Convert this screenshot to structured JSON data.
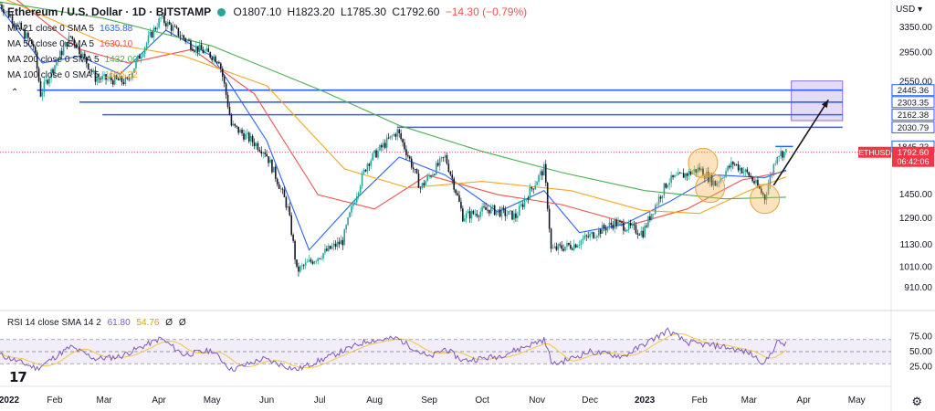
{
  "header": {
    "symbol": "Ethereum / U.S. Dollar · 1D · BITSTAMP",
    "open": "O1807.10",
    "high": "H1823.20",
    "low": "L1785.30",
    "close": "C1792.60",
    "change": "−14.30 (−0.79%)"
  },
  "currency": "USD",
  "moving_averages": [
    {
      "label": "MA 21 close 0 SMA 5",
      "value": "1635.88",
      "color": "#2962ff"
    },
    {
      "label": "MA 50 close 0 SMA 5",
      "value": "1630.10",
      "color": "#ef5350"
    },
    {
      "label": "MA 200 close 0 SMA 5",
      "value": "1432.00",
      "color": "#4caf50"
    },
    {
      "label": "MA 100 close 0 SMA 5",
      "value": "1585.32",
      "color": "#f5a623"
    }
  ],
  "rsi_legend": {
    "label": "RSI 14 close SMA 14 2",
    "rsi": "61.80",
    "sma": "54.76",
    "a": "Ø",
    "b": "Ø"
  },
  "colors": {
    "up": "#26a69a",
    "down": "#131722",
    "level": "#2962ff",
    "price_tag": "#f23645",
    "rsi": "#7e57c2",
    "rsi_ma": "#f5c542",
    "box": "#c9b8f0"
  },
  "chart_data": {
    "type": "candlestick",
    "y_scale": "log",
    "price_ticks": [
      "3350.00",
      "2950.00",
      "2550.00",
      "2160.00",
      "1450.00",
      "1290.00",
      "1130.00",
      "1010.00",
      "910.00"
    ],
    "rsi_ticks": [
      "75.00",
      "50.00",
      "25.00"
    ],
    "x_ticks": [
      "2022",
      "Feb",
      "Mar",
      "Apr",
      "May",
      "Jun",
      "Jul",
      "Aug",
      "Sep",
      "Oct",
      "Nov",
      "Dec",
      "2023",
      "Feb",
      "Mar",
      "Apr",
      "May"
    ],
    "levels": [
      {
        "label": "2445.36",
        "value": 2445.36
      },
      {
        "label": "2303.35",
        "value": 2303.35
      },
      {
        "label": "2162.38",
        "value": 2162.38
      },
      {
        "label": "2030.79",
        "value": 2030.79
      },
      {
        "label": "1845.23",
        "value": 1845.23
      }
    ],
    "current_price": {
      "symbol": "ETHUSD",
      "price": "1792.60",
      "countdown": "06:42:06",
      "value": 1792.6
    },
    "price_anchors": [
      [
        "2022-01-01",
        3750
      ],
      [
        "2022-01-20",
        3050
      ],
      [
        "2022-01-24",
        2400
      ],
      [
        "2022-02-10",
        3200
      ],
      [
        "2022-02-24",
        2600
      ],
      [
        "2022-03-14",
        2550
      ],
      [
        "2022-04-02",
        3500
      ],
      [
        "2022-04-20",
        3050
      ],
      [
        "2022-05-05",
        2850
      ],
      [
        "2022-05-12",
        2050
      ],
      [
        "2022-05-31",
        1800
      ],
      [
        "2022-06-13",
        1350
      ],
      [
        "2022-06-18",
        990
      ],
      [
        "2022-07-01",
        1070
      ],
      [
        "2022-07-14",
        1150
      ],
      [
        "2022-07-28",
        1700
      ],
      [
        "2022-08-14",
        1990
      ],
      [
        "2022-08-27",
        1500
      ],
      [
        "2022-09-10",
        1750
      ],
      [
        "2022-09-20",
        1300
      ],
      [
        "2022-10-05",
        1350
      ],
      [
        "2022-10-20",
        1300
      ],
      [
        "2022-11-05",
        1650
      ],
      [
        "2022-11-09",
        1100
      ],
      [
        "2022-11-22",
        1130
      ],
      [
        "2022-12-15",
        1260
      ],
      [
        "2022-12-31",
        1200
      ],
      [
        "2023-01-14",
        1550
      ],
      [
        "2023-02-01",
        1650
      ],
      [
        "2023-02-10",
        1530
      ],
      [
        "2023-02-20",
        1700
      ],
      [
        "2023-03-01",
        1600
      ],
      [
        "2023-03-10",
        1430
      ],
      [
        "2023-03-17",
        1780
      ],
      [
        "2023-03-22",
        1792.6
      ]
    ],
    "ma_series": [
      {
        "name": "MA 21",
        "points": [
          [
            "2022-01-01",
            3700
          ],
          [
            "2022-01-25",
            2800
          ],
          [
            "2022-02-15",
            2900
          ],
          [
            "2022-03-10",
            2650
          ],
          [
            "2022-04-05",
            3300
          ],
          [
            "2022-05-01",
            2900
          ],
          [
            "2022-06-01",
            1900
          ],
          [
            "2022-06-25",
            1100
          ],
          [
            "2022-07-20",
            1400
          ],
          [
            "2022-08-15",
            1750
          ],
          [
            "2022-09-10",
            1600
          ],
          [
            "2022-10-10",
            1330
          ],
          [
            "2022-11-05",
            1480
          ],
          [
            "2022-11-25",
            1200
          ],
          [
            "2022-12-20",
            1250
          ],
          [
            "2023-01-15",
            1400
          ],
          [
            "2023-02-10",
            1600
          ],
          [
            "2023-03-10",
            1580
          ],
          [
            "2023-03-22",
            1640
          ]
        ]
      },
      {
        "name": "MA 50",
        "points": [
          [
            "2022-01-01",
            4100
          ],
          [
            "2022-02-15",
            3000
          ],
          [
            "2022-03-15",
            2800
          ],
          [
            "2022-04-20",
            3000
          ],
          [
            "2022-05-25",
            2400
          ],
          [
            "2022-06-30",
            1450
          ],
          [
            "2022-08-01",
            1350
          ],
          [
            "2022-08-31",
            1600
          ],
          [
            "2022-10-10",
            1450
          ],
          [
            "2022-11-15",
            1380
          ],
          [
            "2022-12-25",
            1250
          ],
          [
            "2023-01-25",
            1350
          ],
          [
            "2023-02-25",
            1560
          ],
          [
            "2023-03-22",
            1630
          ]
        ]
      },
      {
        "name": "MA 100",
        "points": [
          [
            "2022-01-01",
            3900
          ],
          [
            "2022-03-01",
            3100
          ],
          [
            "2022-04-15",
            2900
          ],
          [
            "2022-06-01",
            2500
          ],
          [
            "2022-07-15",
            1650
          ],
          [
            "2022-08-20",
            1500
          ],
          [
            "2022-10-01",
            1550
          ],
          [
            "2022-11-20",
            1480
          ],
          [
            "2022-12-31",
            1340
          ],
          [
            "2023-02-01",
            1320
          ],
          [
            "2023-03-01",
            1480
          ],
          [
            "2023-03-22",
            1585
          ]
        ]
      },
      {
        "name": "MA 200",
        "points": [
          [
            "2022-01-01",
            3800
          ],
          [
            "2022-03-01",
            3500
          ],
          [
            "2022-05-01",
            3050
          ],
          [
            "2022-07-01",
            2450
          ],
          [
            "2022-08-15",
            2050
          ],
          [
            "2022-10-01",
            1800
          ],
          [
            "2022-11-15",
            1620
          ],
          [
            "2023-01-01",
            1480
          ],
          [
            "2023-02-15",
            1420
          ],
          [
            "2023-03-22",
            1432
          ]
        ]
      }
    ],
    "rsi_anchors": [
      [
        "2022-01-01",
        45
      ],
      [
        "2022-01-22",
        22
      ],
      [
        "2022-02-10",
        58
      ],
      [
        "2022-02-24",
        38
      ],
      [
        "2022-03-10",
        42
      ],
      [
        "2022-04-02",
        72
      ],
      [
        "2022-04-15",
        45
      ],
      [
        "2022-05-01",
        52
      ],
      [
        "2022-05-12",
        20
      ],
      [
        "2022-05-30",
        38
      ],
      [
        "2022-06-18",
        20
      ],
      [
        "2022-07-05",
        40
      ],
      [
        "2022-07-28",
        68
      ],
      [
        "2022-08-14",
        72
      ],
      [
        "2022-09-01",
        40
      ],
      [
        "2022-09-10",
        55
      ],
      [
        "2022-09-20",
        35
      ],
      [
        "2022-10-10",
        42
      ],
      [
        "2022-11-05",
        70
      ],
      [
        "2022-11-10",
        28
      ],
      [
        "2022-12-01",
        50
      ],
      [
        "2022-12-20",
        42
      ],
      [
        "2023-01-14",
        85
      ],
      [
        "2023-01-25",
        65
      ],
      [
        "2023-02-15",
        58
      ],
      [
        "2023-03-01",
        48
      ],
      [
        "2023-03-10",
        30
      ],
      [
        "2023-03-17",
        66
      ],
      [
        "2023-03-22",
        62
      ]
    ]
  }
}
